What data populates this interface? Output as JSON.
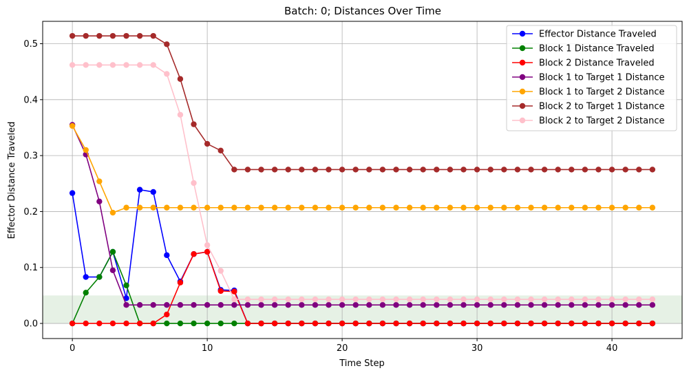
{
  "chart_data": {
    "type": "line",
    "title": "Batch: 0; Distances Over Time",
    "xlabel": "Time Step",
    "ylabel": "Effector Distance Traveled",
    "xlim": [
      -2.2,
      45.2
    ],
    "ylim": [
      -0.027,
      0.54
    ],
    "xticks": [
      0,
      10,
      20,
      30,
      40
    ],
    "yticks": [
      0.0,
      0.1,
      0.2,
      0.3,
      0.4,
      0.5
    ],
    "xtick_labels": [
      "0",
      "10",
      "20",
      "30",
      "40"
    ],
    "ytick_labels": [
      "0.0",
      "0.1",
      "0.2",
      "0.3",
      "0.4",
      "0.5"
    ],
    "grid": true,
    "legend_position": "top-right",
    "threshold_band": {
      "y0": 0.0,
      "y1": 0.05,
      "color": "#d5e8d4"
    },
    "x": [
      0,
      1,
      2,
      3,
      4,
      5,
      6,
      7,
      8,
      9,
      10,
      11,
      12,
      13,
      14,
      15,
      16,
      17,
      18,
      19,
      20,
      21,
      22,
      23,
      24,
      25,
      26,
      27,
      28,
      29,
      30,
      31,
      32,
      33,
      34,
      35,
      36,
      37,
      38,
      39,
      40,
      41,
      42,
      43
    ],
    "series": [
      {
        "name": "Effector Distance Traveled",
        "color": "#0000ff",
        "values": [
          0.233,
          0.083,
          0.083,
          0.128,
          0.045,
          0.239,
          0.235,
          0.122,
          0.075,
          0.124,
          0.128,
          0.06,
          0.059,
          0,
          0,
          0,
          0,
          0,
          0,
          0,
          0,
          0,
          0,
          0,
          0,
          0,
          0,
          0,
          0,
          0,
          0,
          0,
          0,
          0,
          0,
          0,
          0,
          0,
          0,
          0,
          0,
          0,
          0,
          0
        ]
      },
      {
        "name": "Block 1 Distance Traveled",
        "color": "#008000",
        "values": [
          0,
          0.055,
          0.083,
          0.128,
          0.068,
          0,
          0,
          0,
          0,
          0,
          0,
          0,
          0,
          0,
          0,
          0,
          0,
          0,
          0,
          0,
          0,
          0,
          0,
          0,
          0,
          0,
          0,
          0,
          0,
          0,
          0,
          0,
          0,
          0,
          0,
          0,
          0,
          0,
          0,
          0,
          0,
          0,
          0,
          0
        ]
      },
      {
        "name": "Block 2 Distance Traveled",
        "color": "#ff0000",
        "values": [
          0,
          0,
          0,
          0,
          0,
          0,
          0,
          0.016,
          0.073,
          0.124,
          0.128,
          0.058,
          0.057,
          0,
          0,
          0,
          0,
          0,
          0,
          0,
          0,
          0,
          0,
          0,
          0,
          0,
          0,
          0,
          0,
          0,
          0,
          0,
          0,
          0,
          0,
          0,
          0,
          0,
          0,
          0,
          0,
          0,
          0,
          0
        ]
      },
      {
        "name": "Block 1 to Target 1 Distance",
        "color": "#800080",
        "values": [
          0.355,
          0.302,
          0.218,
          0.095,
          0.033,
          0.033,
          0.033,
          0.033,
          0.033,
          0.033,
          0.033,
          0.033,
          0.033,
          0.033,
          0.033,
          0.033,
          0.033,
          0.033,
          0.033,
          0.033,
          0.033,
          0.033,
          0.033,
          0.033,
          0.033,
          0.033,
          0.033,
          0.033,
          0.033,
          0.033,
          0.033,
          0.033,
          0.033,
          0.033,
          0.033,
          0.033,
          0.033,
          0.033,
          0.033,
          0.033,
          0.033,
          0.033,
          0.033,
          0.033
        ]
      },
      {
        "name": "Block 1 to Target 2 Distance",
        "color": "#ffa500",
        "values": [
          0.353,
          0.31,
          0.254,
          0.198,
          0.207,
          0.207,
          0.207,
          0.207,
          0.207,
          0.207,
          0.207,
          0.207,
          0.207,
          0.207,
          0.207,
          0.207,
          0.207,
          0.207,
          0.207,
          0.207,
          0.207,
          0.207,
          0.207,
          0.207,
          0.207,
          0.207,
          0.207,
          0.207,
          0.207,
          0.207,
          0.207,
          0.207,
          0.207,
          0.207,
          0.207,
          0.207,
          0.207,
          0.207,
          0.207,
          0.207,
          0.207,
          0.207,
          0.207,
          0.207
        ]
      },
      {
        "name": "Block 2 to Target 1 Distance",
        "color": "#a52a2a",
        "values": [
          0.514,
          0.514,
          0.514,
          0.514,
          0.514,
          0.514,
          0.514,
          0.499,
          0.437,
          0.356,
          0.321,
          0.309,
          0.275,
          0.275,
          0.275,
          0.275,
          0.275,
          0.275,
          0.275,
          0.275,
          0.275,
          0.275,
          0.275,
          0.275,
          0.275,
          0.275,
          0.275,
          0.275,
          0.275,
          0.275,
          0.275,
          0.275,
          0.275,
          0.275,
          0.275,
          0.275,
          0.275,
          0.275,
          0.275,
          0.275,
          0.275,
          0.275,
          0.275,
          0.275
        ]
      },
      {
        "name": "Block 2 to Target 2 Distance",
        "color": "#ffc0cb",
        "values": [
          0.462,
          0.462,
          0.462,
          0.462,
          0.462,
          0.462,
          0.462,
          0.446,
          0.373,
          0.251,
          0.14,
          0.094,
          0.043,
          0.043,
          0.043,
          0.043,
          0.043,
          0.043,
          0.043,
          0.043,
          0.043,
          0.043,
          0.043,
          0.043,
          0.043,
          0.043,
          0.043,
          0.043,
          0.043,
          0.043,
          0.043,
          0.043,
          0.043,
          0.043,
          0.043,
          0.043,
          0.043,
          0.043,
          0.043,
          0.043,
          0.043,
          0.043,
          0.043,
          0.043
        ]
      }
    ]
  }
}
